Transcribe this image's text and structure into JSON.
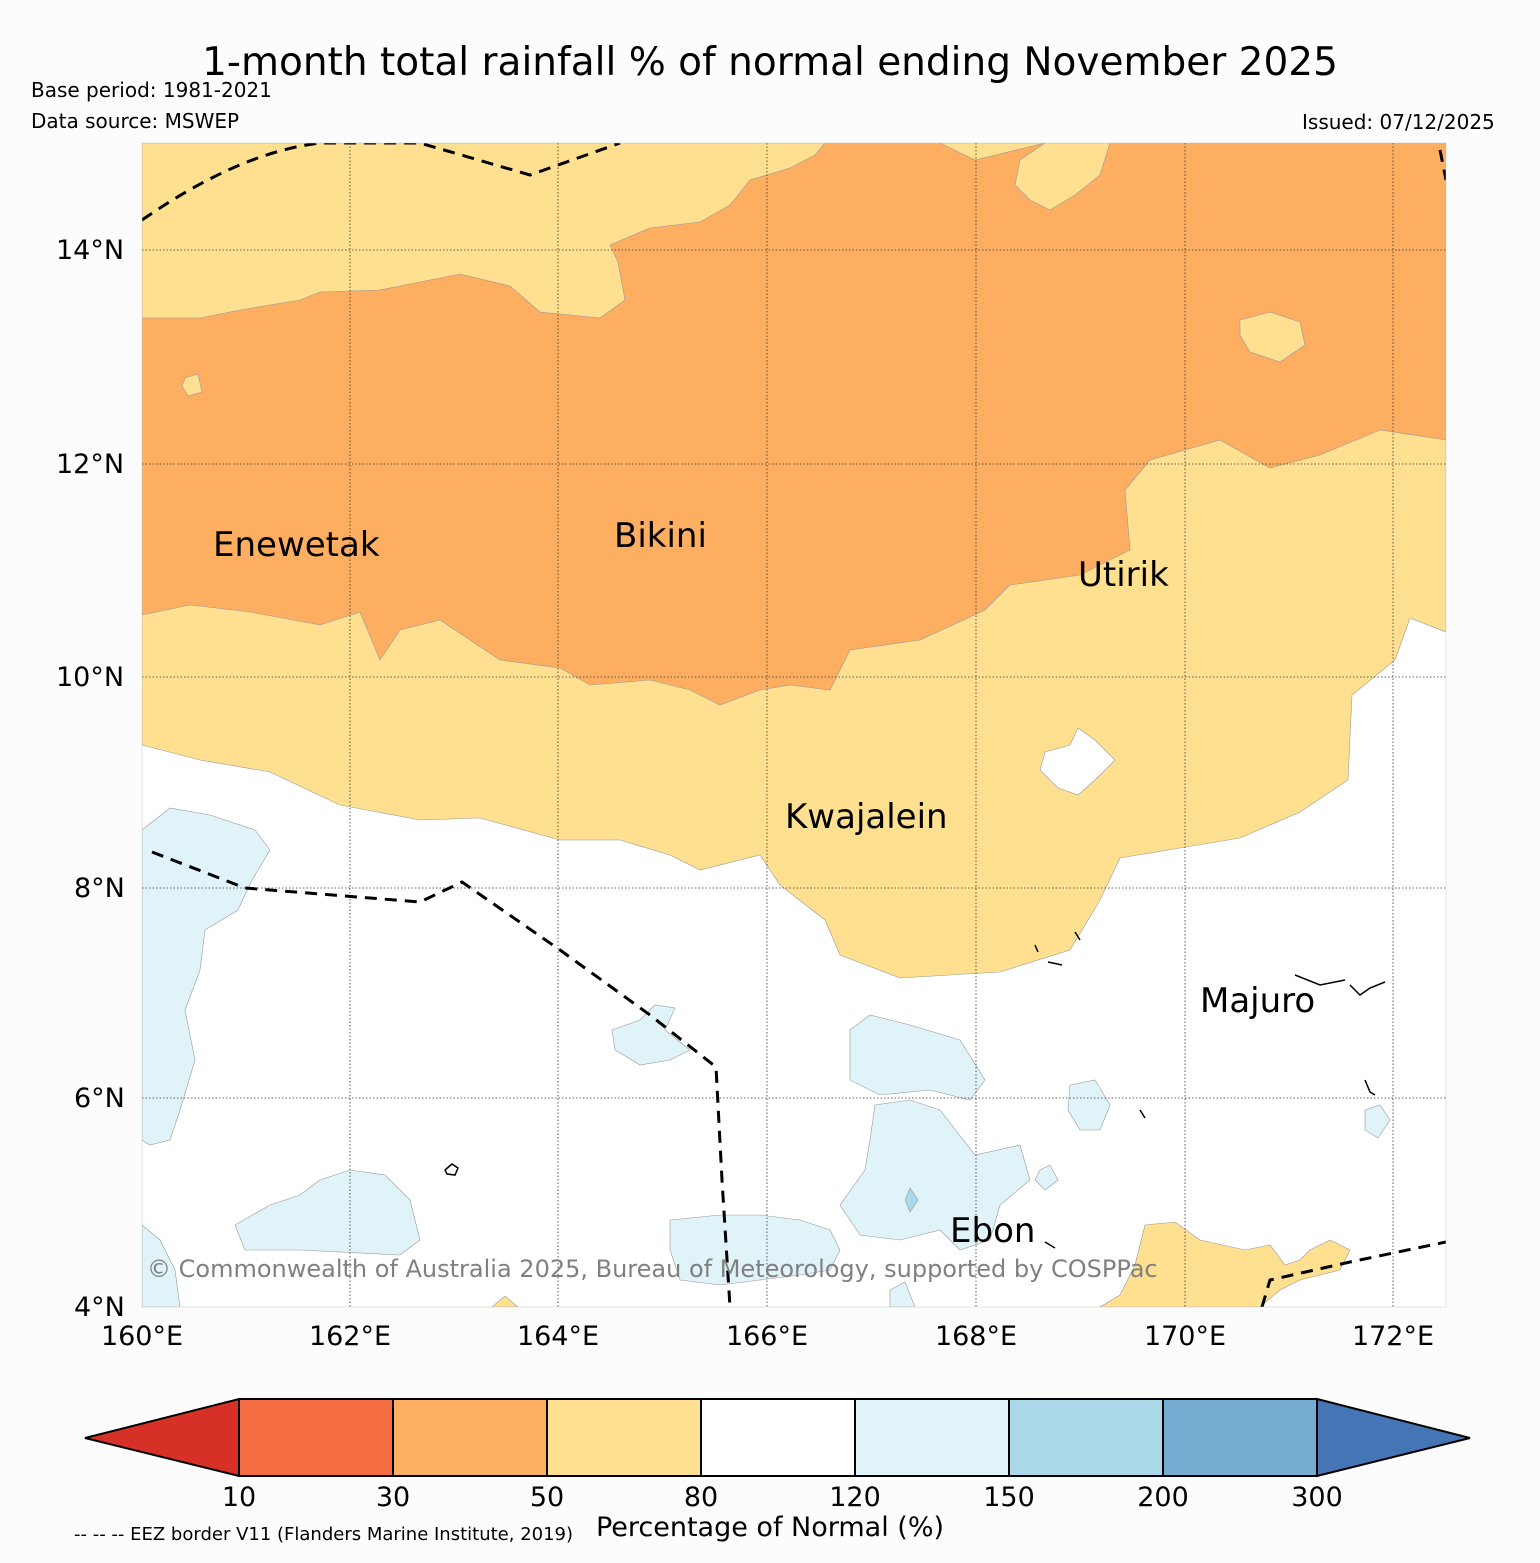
{
  "title": "1-month total rainfall % of normal ending November 2025",
  "base_period": "Base period: 1981-2021",
  "data_source": "Data source: MSWEP",
  "issued": "Issued: 07/12/2025",
  "copyright": "© Commonwealth of Australia 2025, Bureau of Meteorology, supported by COSPPac",
  "eez_note": "-- -- -- EEZ border V11 (Flanders Marine Institute, 2019)",
  "colors": {
    "lt10": "#d73027",
    "c10_30": "#f46d43",
    "c30_50": "#fdae61",
    "c50_80": "#fee090",
    "c80_120": "#ffffff",
    "c120_150": "#e0f3f8",
    "c150_200": "#abd9e9",
    "c200_300": "#74add1",
    "gt300": "#4575b4"
  },
  "lat_labels": [
    "14°N",
    "12°N",
    "10°N",
    "8°N",
    "6°N",
    "4°N"
  ],
  "lon_labels": [
    "160°E",
    "162°E",
    "164°E",
    "166°E",
    "168°E",
    "170°E",
    "172°E"
  ],
  "places": [
    "Enewetak",
    "Bikini",
    "Utirik",
    "Kwajalein",
    "Majuro",
    "Ebon"
  ],
  "colorbar": {
    "ticks": [
      "10",
      "30",
      "50",
      "80",
      "120",
      "150",
      "200",
      "300"
    ],
    "label": "Percentage of Normal (%)"
  }
}
